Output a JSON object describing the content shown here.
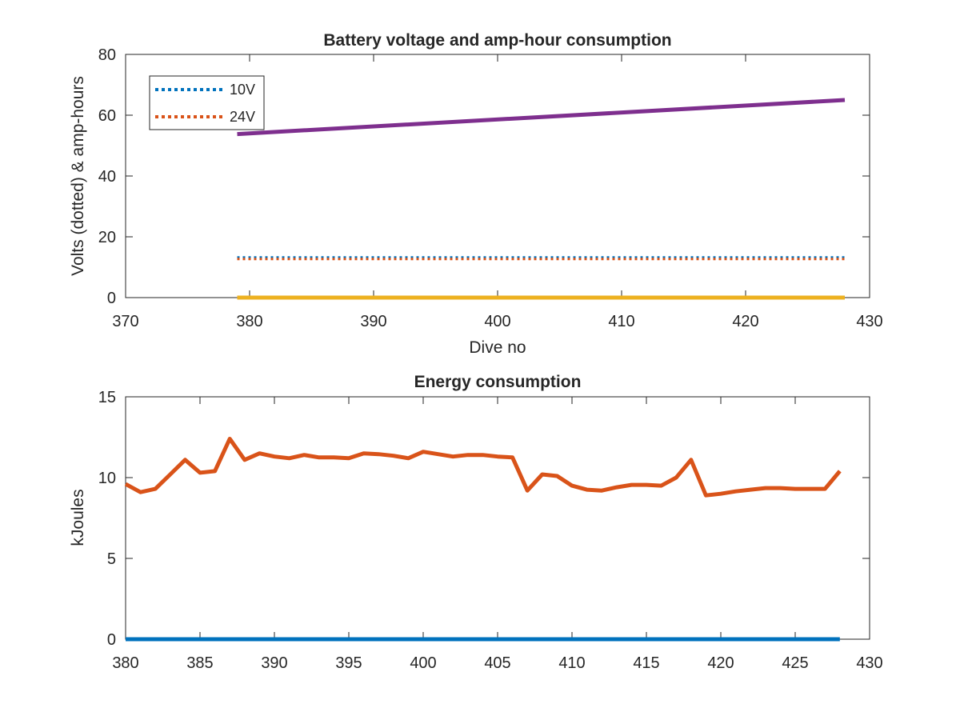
{
  "chart_data": [
    {
      "type": "line",
      "title": "Battery voltage and amp-hour consumption",
      "xlabel": "Dive no",
      "ylabel": "Volts (dotted) & amp-hours",
      "xlim": [
        370,
        430
      ],
      "ylim": [
        0,
        80
      ],
      "xticks": [
        "370",
        "380",
        "390",
        "400",
        "410",
        "420",
        "430"
      ],
      "yticks": [
        "0",
        "20",
        "40",
        "60",
        "80"
      ],
      "legend_position": "top-left",
      "grid": false,
      "series": [
        {
          "name": "10V",
          "style": "dotted",
          "color": "#0072BD",
          "x": [
            379,
            428
          ],
          "y": [
            13.2,
            13.2
          ]
        },
        {
          "name": "24V",
          "style": "dotted",
          "color": "#D95319",
          "x": [
            379,
            428
          ],
          "y": [
            12.7,
            12.7
          ]
        },
        {
          "style": "solid",
          "color": "#7E2F8E",
          "x": [
            379,
            428
          ],
          "y": [
            53.8,
            65.0
          ]
        },
        {
          "style": "solid",
          "color": "#EDB120",
          "x": [
            379,
            428
          ],
          "y": [
            0,
            0
          ]
        }
      ]
    },
    {
      "type": "line",
      "title": "Energy consumption",
      "xlabel": "",
      "ylabel": "kJoules",
      "xlim": [
        380,
        430
      ],
      "ylim": [
        0,
        15
      ],
      "xticks": [
        "380",
        "385",
        "390",
        "395",
        "400",
        "405",
        "410",
        "415",
        "420",
        "425",
        "430"
      ],
      "yticks": [
        "0",
        "5",
        "10",
        "15"
      ],
      "grid": false,
      "series": [
        {
          "style": "solid",
          "color": "#0072BD",
          "x": [
            380,
            428
          ],
          "y": [
            0,
            0
          ]
        },
        {
          "style": "solid",
          "color": "#D95319",
          "x": [
            380,
            381,
            382,
            383,
            384,
            385,
            386,
            387,
            388,
            389,
            390,
            391,
            392,
            393,
            394,
            395,
            396,
            397,
            398,
            399,
            400,
            401,
            402,
            403,
            404,
            405,
            406,
            407,
            408,
            409,
            410,
            411,
            412,
            413,
            414,
            415,
            416,
            417,
            418,
            419,
            420,
            421,
            422,
            423,
            424,
            425,
            426,
            427,
            428
          ],
          "y": [
            9.6,
            9.1,
            9.3,
            10.2,
            11.1,
            10.3,
            10.4,
            12.4,
            11.1,
            11.5,
            11.3,
            11.2,
            11.4,
            11.25,
            11.25,
            11.2,
            11.5,
            11.45,
            11.35,
            11.2,
            11.6,
            11.45,
            11.3,
            11.4,
            11.4,
            11.3,
            11.25,
            9.2,
            10.2,
            10.1,
            9.5,
            9.25,
            9.2,
            9.4,
            9.55,
            9.55,
            9.5,
            10.0,
            11.1,
            8.9,
            9.0,
            9.15,
            9.25,
            9.35,
            9.35,
            9.3,
            9.3,
            9.3,
            10.4
          ]
        }
      ]
    }
  ]
}
